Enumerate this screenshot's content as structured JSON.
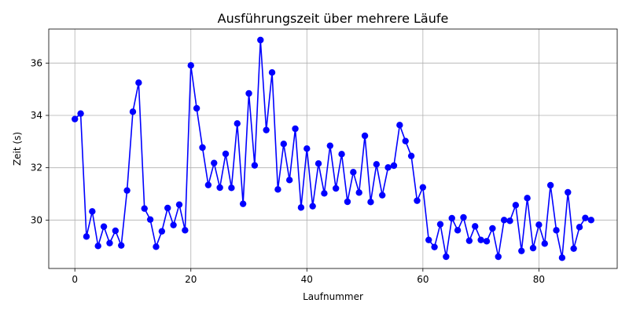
{
  "chart_data": {
    "type": "line",
    "title": "Ausführungszeit über mehrere Läufe",
    "xlabel": "Laufnummer",
    "ylabel": "Zeit (s)",
    "xlim": [
      -4.5,
      93.5
    ],
    "ylim": [
      28.15,
      37.3
    ],
    "xticks": [
      0,
      20,
      40,
      60,
      80
    ],
    "yticks": [
      30,
      32,
      34,
      36
    ],
    "grid": true,
    "series": [
      {
        "color": "#0000ff",
        "marker": "circle",
        "x": [
          0,
          1,
          2,
          3,
          4,
          5,
          6,
          7,
          8,
          9,
          10,
          11,
          12,
          13,
          14,
          15,
          16,
          17,
          18,
          19,
          20,
          21,
          22,
          23,
          24,
          25,
          26,
          27,
          28,
          29,
          30,
          31,
          32,
          33,
          34,
          35,
          36,
          37,
          38,
          39,
          40,
          41,
          42,
          43,
          44,
          45,
          46,
          47,
          48,
          49,
          50,
          51,
          52,
          53,
          54,
          55,
          56,
          57,
          58,
          59,
          60,
          61,
          62,
          63,
          64,
          65,
          66,
          67,
          68,
          69,
          70,
          71,
          72,
          73,
          74,
          75,
          76,
          77,
          78,
          79,
          80,
          81,
          82,
          83,
          84,
          85,
          86,
          87,
          88,
          89
        ],
        "y": [
          33.86,
          34.07,
          29.37,
          30.33,
          29.01,
          29.75,
          29.12,
          29.59,
          29.03,
          31.13,
          34.14,
          35.25,
          30.44,
          30.02,
          28.98,
          29.57,
          30.46,
          29.81,
          30.59,
          29.61,
          35.91,
          34.27,
          32.77,
          31.34,
          32.18,
          31.24,
          32.53,
          31.23,
          33.69,
          30.62,
          34.84,
          32.09,
          36.88,
          33.44,
          35.64,
          31.17,
          32.91,
          31.53,
          33.49,
          30.48,
          32.73,
          30.53,
          32.16,
          31.02,
          32.84,
          31.21,
          32.52,
          30.7,
          31.83,
          31.05,
          33.22,
          30.69,
          32.13,
          30.95,
          32.01,
          32.08,
          33.63,
          33.02,
          32.45,
          30.74,
          31.25,
          29.24,
          28.97,
          29.84,
          28.6,
          30.07,
          29.61,
          30.1,
          29.21,
          29.76,
          29.24,
          29.19,
          29.68,
          28.6,
          30.0,
          29.97,
          30.57,
          28.82,
          30.84,
          28.93,
          29.82,
          29.1,
          31.33,
          29.61,
          28.56,
          31.06,
          28.91,
          29.73,
          30.08,
          30.0
        ]
      }
    ]
  }
}
